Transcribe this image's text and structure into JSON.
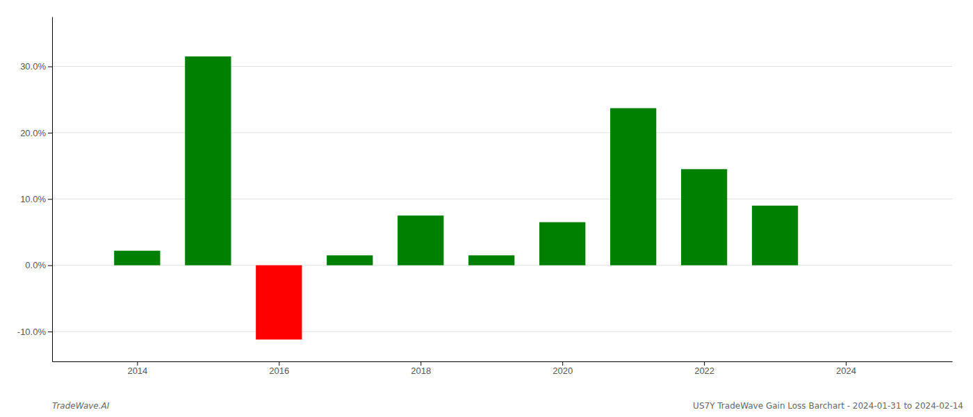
{
  "chart_data": {
    "type": "bar",
    "x": [
      2014,
      2015,
      2016,
      2017,
      2018,
      2019,
      2020,
      2021,
      2022,
      2023
    ],
    "values": [
      0.022,
      0.315,
      -0.112,
      0.015,
      0.075,
      0.015,
      0.065,
      0.237,
      0.145,
      0.09
    ],
    "colors": [
      "#008000",
      "#008000",
      "#ff0000",
      "#008000",
      "#008000",
      "#008000",
      "#008000",
      "#008000",
      "#008000",
      "#008000"
    ],
    "xlim": [
      2012.8,
      2025.5
    ],
    "ylim": [
      -0.145,
      0.375
    ],
    "xticks": [
      2014,
      2016,
      2018,
      2020,
      2022,
      2024
    ],
    "yticks": [
      {
        "value": -0.1,
        "label": "-10.0%"
      },
      {
        "value": 0.0,
        "label": "0.0%"
      },
      {
        "value": 0.1,
        "label": "10.0%"
      },
      {
        "value": 0.2,
        "label": "20.0%"
      },
      {
        "value": 0.3,
        "label": "30.0%"
      }
    ],
    "grid": true,
    "annotations": [
      "TradeWave.AI",
      "US7Y TradeWave Gain Loss Barchart - 2024-01-31 to 2024-02-14"
    ]
  }
}
